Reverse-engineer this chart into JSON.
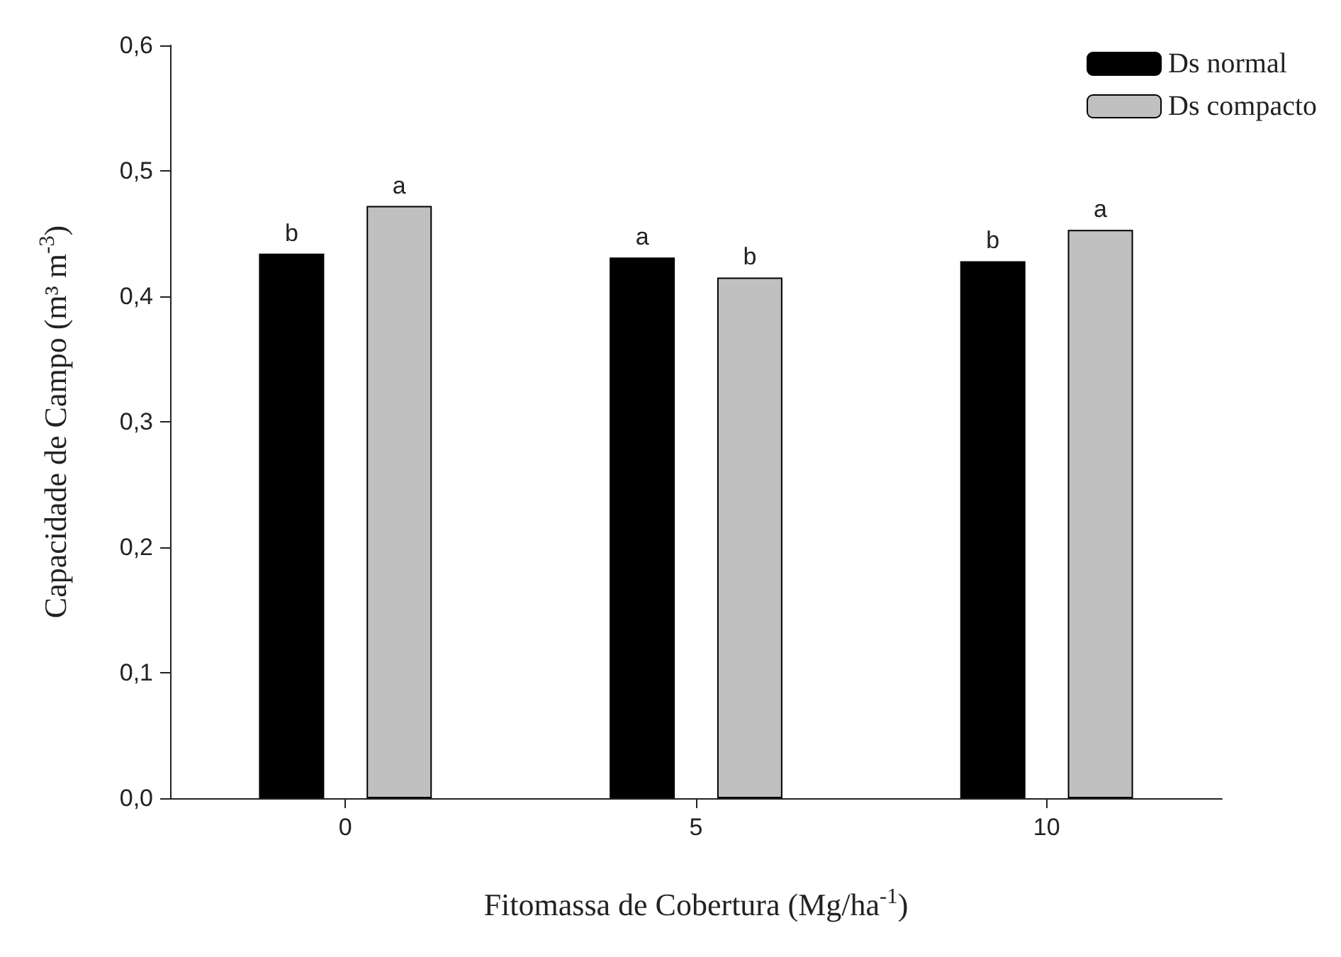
{
  "chart_data": {
    "type": "bar",
    "xlabel": "Fitomassa de Cobertura (Mg/ha$^{-1}$)",
    "ylabel": "Capacidade de Campo (m³ m$^{-3}$)",
    "categories": [
      "0",
      "5",
      "10"
    ],
    "series": [
      {
        "name": "Ds normal",
        "color": "#000000",
        "values": [
          0.434,
          0.431,
          0.428
        ],
        "value_labels": [
          "b",
          "a",
          "b"
        ]
      },
      {
        "name": "Ds compacto",
        "color": "#c0c0c0",
        "values": [
          0.472,
          0.415,
          0.453
        ],
        "value_labels": [
          "a",
          "b",
          "a"
        ]
      }
    ],
    "ylim": [
      0,
      0.6
    ],
    "yticks": [
      {
        "value": 0,
        "label": "0,0"
      },
      {
        "value": 0.1,
        "label": "0,1"
      },
      {
        "value": 0.2,
        "label": "0,2"
      },
      {
        "value": 0.3,
        "label": "0,3"
      },
      {
        "value": 0.4,
        "label": "0,4"
      },
      {
        "value": 0.5,
        "label": "0,5"
      },
      {
        "value": 0.6,
        "label": "0,6"
      }
    ],
    "grid": false,
    "legend": "top right"
  }
}
